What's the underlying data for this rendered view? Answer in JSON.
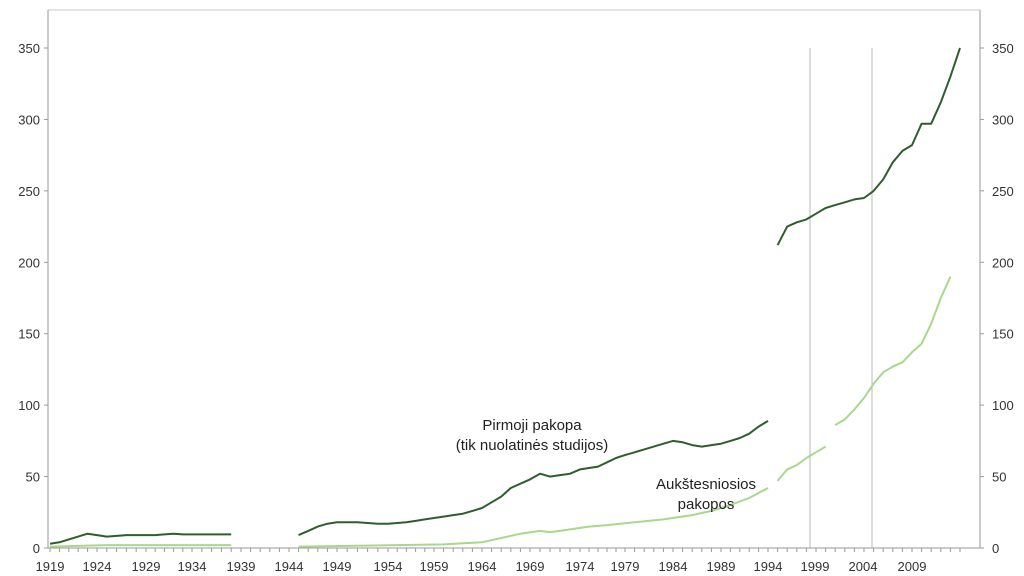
{
  "chart_data": {
    "type": "line",
    "xlim": [
      1919,
      2011
    ],
    "ylim": [
      0,
      350
    ],
    "y_ticks": [
      0,
      50,
      100,
      150,
      200,
      250,
      300,
      350
    ],
    "y_tick_labels": [
      "0",
      "50",
      "100",
      "150",
      "200",
      "250",
      "300",
      "350"
    ],
    "x_ticks": [
      1919,
      1924,
      1929,
      1934,
      1939,
      1944,
      1949,
      1954,
      1959,
      1964,
      1969,
      1974,
      1979,
      1984,
      1989,
      1994,
      1999,
      2004,
      2009
    ],
    "x_tick_labels": [
      "1919",
      "1924",
      "1929",
      "1934",
      "1939",
      "1944",
      "1949",
      "1954",
      "1959",
      "1964",
      "1969",
      "1974",
      "1979",
      "1984",
      "1989",
      "1994",
      "1999",
      "2004",
      "2009"
    ],
    "grid": false,
    "vertical_markers": [
      1994,
      2000
    ],
    "annotations": [
      {
        "lines": [
          "Pirmoji pakopa",
          "(tik nuolatinės studijos)"
        ],
        "series": 0
      },
      {
        "lines": [
          "Aukštesniosios",
          "pakopos"
        ],
        "series": 1
      }
    ],
    "series": [
      {
        "color": "#2e5e2e",
        "segments": [
          [
            [
              1919,
              3
            ],
            [
              1920,
              4
            ],
            [
              1921,
              6
            ],
            [
              1922,
              8
            ],
            [
              1923,
              10
            ],
            [
              1924,
              9
            ],
            [
              1925,
              8
            ],
            [
              1926,
              8.5
            ],
            [
              1927,
              9
            ],
            [
              1928,
              9
            ],
            [
              1929,
              9
            ],
            [
              1930,
              9
            ],
            [
              1931,
              9.5
            ],
            [
              1932,
              10
            ],
            [
              1933,
              9.5
            ],
            [
              1934,
              9.5
            ],
            [
              1935,
              9.5
            ],
            [
              1936,
              9.5
            ],
            [
              1937,
              9.5
            ],
            [
              1938,
              9.5
            ]
          ],
          [
            [
              1945,
              9
            ],
            [
              1946,
              12
            ],
            [
              1947,
              15
            ],
            [
              1948,
              17
            ],
            [
              1949,
              18
            ],
            [
              1950,
              18
            ],
            [
              1951,
              18
            ],
            [
              1952,
              17.5
            ],
            [
              1953,
              17
            ],
            [
              1954,
              17
            ],
            [
              1955,
              17.5
            ],
            [
              1956,
              18
            ],
            [
              1957,
              19
            ],
            [
              1958,
              20
            ],
            [
              1959,
              21
            ],
            [
              1960,
              22
            ],
            [
              1961,
              23
            ],
            [
              1962,
              24
            ],
            [
              1963,
              26
            ],
            [
              1964,
              28
            ],
            [
              1965,
              32
            ],
            [
              1966,
              36
            ],
            [
              1967,
              42
            ],
            [
              1968,
              45
            ],
            [
              1969,
              48
            ],
            [
              1970,
              52
            ],
            [
              1971,
              50
            ],
            [
              1972,
              51
            ],
            [
              1973,
              52
            ],
            [
              1974,
              55
            ],
            [
              1975,
              56
            ],
            [
              1976,
              57
            ],
            [
              1977,
              60
            ],
            [
              1978,
              63
            ],
            [
              1979,
              65
            ],
            [
              1980,
              67
            ],
            [
              1981,
              69
            ],
            [
              1982,
              71
            ],
            [
              1983,
              73
            ],
            [
              1984,
              75
            ],
            [
              1985,
              74
            ],
            [
              1986,
              72
            ],
            [
              1987,
              71
            ],
            [
              1988,
              72
            ],
            [
              1989,
              73
            ],
            [
              1990,
              75
            ],
            [
              1991,
              77
            ],
            [
              1992,
              80
            ],
            [
              1993,
              85
            ],
            [
              1994,
              89
            ]
          ],
          [
            [
              1995,
              212
            ],
            [
              1996,
              225
            ],
            [
              1997,
              228
            ],
            [
              1998,
              230
            ],
            [
              1999,
              234
            ],
            [
              2000,
              238
            ],
            [
              2001,
              240
            ],
            [
              2002,
              242
            ],
            [
              2003,
              244
            ],
            [
              2004,
              245
            ],
            [
              2005,
              250
            ],
            [
              2006,
              258
            ],
            [
              2007,
              270
            ],
            [
              2008,
              278
            ],
            [
              2009,
              282
            ],
            [
              2010,
              297
            ],
            [
              2011,
              297
            ],
            [
              2012,
              312
            ],
            [
              2013,
              330
            ],
            [
              2014,
              350
            ]
          ]
        ]
      },
      {
        "color": "#a8d98a",
        "segments": [
          [
            [
              1919,
              1
            ],
            [
              1922,
              1.5
            ],
            [
              1925,
              2
            ],
            [
              1930,
              2
            ],
            [
              1935,
              2
            ],
            [
              1938,
              2
            ]
          ],
          [
            [
              1945,
              1
            ],
            [
              1950,
              1.5
            ],
            [
              1955,
              2
            ],
            [
              1960,
              2.5
            ],
            [
              1964,
              4
            ],
            [
              1966,
              7
            ],
            [
              1968,
              10
            ],
            [
              1970,
              12
            ],
            [
              1971,
              11
            ],
            [
              1973,
              13
            ],
            [
              1975,
              15
            ],
            [
              1977,
              16
            ],
            [
              1980,
              18
            ],
            [
              1983,
              20
            ],
            [
              1986,
              23
            ],
            [
              1988,
              26
            ],
            [
              1990,
              30
            ],
            [
              1992,
              35
            ],
            [
              1994,
              42
            ]
          ],
          [
            [
              1995,
              47
            ],
            [
              1996,
              55
            ],
            [
              1997,
              58
            ],
            [
              1998,
              63
            ],
            [
              1999,
              67
            ],
            [
              2000,
              71
            ]
          ],
          [
            [
              2001,
              86
            ],
            [
              2002,
              90
            ],
            [
              2003,
              97
            ],
            [
              2004,
              105
            ],
            [
              2005,
              115
            ],
            [
              2006,
              123
            ],
            [
              2007,
              127
            ],
            [
              2008,
              130
            ],
            [
              2009,
              137
            ],
            [
              2010,
              143
            ],
            [
              2011,
              157
            ],
            [
              2012,
              175
            ],
            [
              2013,
              190
            ]
          ]
        ]
      }
    ]
  }
}
